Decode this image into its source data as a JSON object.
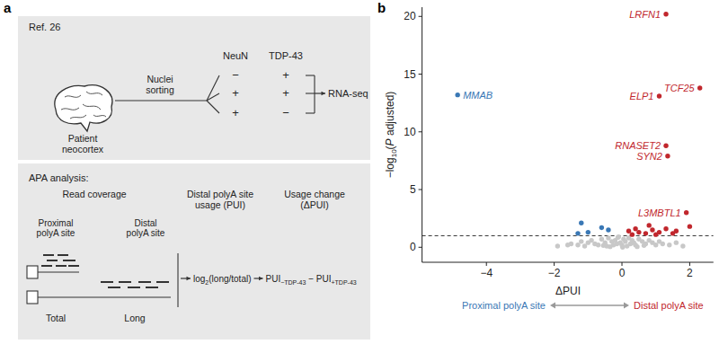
{
  "panel_labels": [
    "a",
    "b"
  ],
  "diagram": {
    "ref": "Ref. 26",
    "source": [
      "Patient",
      "neocortex"
    ],
    "step": [
      "Nuclei",
      "sorting"
    ],
    "columns": [
      "NeuN",
      "TDP-43"
    ],
    "rows": [
      [
        "−",
        "+"
      ],
      [
        "+",
        "+"
      ],
      [
        "+",
        "−"
      ]
    ],
    "output": "RNA-seq",
    "apa": {
      "title": "APA analysis:",
      "headers": [
        [
          "Read coverage"
        ],
        [
          "Distal polyA site",
          "usage (PUI)"
        ],
        [
          "Usage change",
          "(ΔPUI)"
        ]
      ],
      "sites": [
        [
          "Proximal",
          "polyA site"
        ],
        [
          "Distal",
          "polyA site"
        ]
      ],
      "tracks": [
        "Total",
        "Long"
      ],
      "usage": {
        "text": "log",
        "sub": "2",
        "rest": "(long/total)"
      },
      "change": {
        "terms": [
          {
            "text": "PUI",
            "sub": "−TDP-43"
          },
          {
            "text": "PUI",
            "sub": "+TDP-43"
          }
        ],
        "operator": "−"
      }
    }
  },
  "chart_data": {
    "type": "scatter",
    "xlabel": "ΔPUI",
    "ylabel": "−log10(P adjusted)",
    "xlim": [
      -5.9,
      2.7
    ],
    "ylim": [
      -1.3,
      20.8
    ],
    "xticks": [
      {
        "value": -4,
        "label": "−4"
      },
      {
        "value": -2,
        "label": "−2"
      },
      0,
      2
    ],
    "yticks": [
      0,
      5,
      10,
      15,
      20
    ],
    "grid": false,
    "marker": "circle",
    "hlines": [
      {
        "value": 1,
        "line_style": "dashed"
      }
    ],
    "direction_labels": [
      "Proximal polyA site",
      "Distal polyA site"
    ],
    "series": [
      {
        "color": "#c1272d",
        "x": [
          1.3,
          2.3,
          1.1,
          1.3,
          1.35,
          1.9,
          0.2,
          0.4,
          0.5,
          0.7,
          0.9,
          1.0,
          1.3,
          1.5,
          1.6,
          1.1,
          0.3,
          2.0,
          0.8
        ],
        "values": [
          20.2,
          13.8,
          13.1,
          8.8,
          7.9,
          3.0,
          1.4,
          1.6,
          1.3,
          1.2,
          1.5,
          1.1,
          1.6,
          1.2,
          1.4,
          1.3,
          1.1,
          1.8,
          1.9
        ],
        "labels": [
          "LRFN1",
          "TCF25",
          "ELP1",
          "RNASET2",
          "SYN2",
          "L3MBTL1",
          null,
          null,
          null,
          null,
          null,
          null,
          null,
          null,
          null,
          null,
          null,
          null,
          null
        ]
      },
      {
        "color": "#3a78b5",
        "x": [
          -4.85,
          -1.2,
          -1.0,
          -0.6,
          -0.4,
          -1.3
        ],
        "values": [
          13.2,
          2.1,
          1.3,
          1.7,
          1.5,
          1.2
        ],
        "labels": [
          "MMAB",
          null,
          null,
          null,
          null,
          null
        ]
      },
      {
        "color": "#c8c8c8",
        "x": [
          -1.9,
          -1.6,
          -1.5,
          -1.3,
          -1.2,
          -1.1,
          -1.0,
          -0.9,
          -0.8,
          -0.7,
          -0.6,
          -0.5,
          -0.45,
          -0.4,
          -0.3,
          -0.25,
          -0.2,
          -0.15,
          -0.1,
          -0.05,
          0,
          0.05,
          0.1,
          0.15,
          0.2,
          0.25,
          0.3,
          0.35,
          0.4,
          0.5,
          0.6,
          0.7,
          0.8,
          0.9,
          1.0,
          1.1,
          1.2,
          1.4,
          1.6,
          1.8,
          -0.35,
          0.45,
          -0.55,
          0.65,
          0.02,
          -0.12
        ],
        "values": [
          0.1,
          0.2,
          0.3,
          0.2,
          0.5,
          0.1,
          0.4,
          0.6,
          0.3,
          0.2,
          0.7,
          0.4,
          0.1,
          0.8,
          0.5,
          0.2,
          0.6,
          0.3,
          0.9,
          0.4,
          0.2,
          0.7,
          0.5,
          0.1,
          0.8,
          0.3,
          0.6,
          0.4,
          0.2,
          0.7,
          0.5,
          0.3,
          0.6,
          0.4,
          0.2,
          0.5,
          0.3,
          0.2,
          0.4,
          0.1,
          0.05,
          0.05,
          0.15,
          0.15,
          0.0,
          0.85
        ]
      }
    ]
  }
}
